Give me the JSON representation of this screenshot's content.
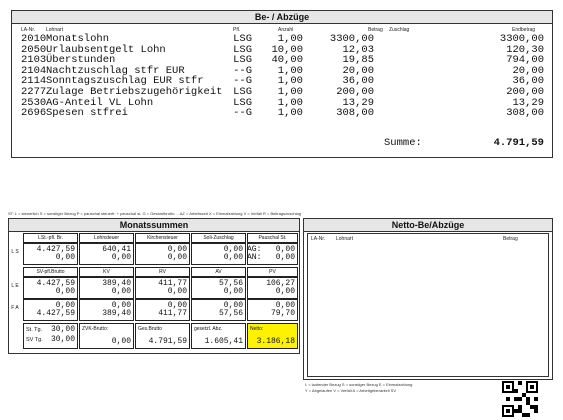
{
  "top": {
    "title": "Be- / Abzüge",
    "col_lanr": "LA-Nr.",
    "col_lohnart": "Lohnart",
    "col_pfl": "Pfl.",
    "col_anzahl": "Anzahl",
    "col_betrag": "Betrag",
    "col_zuschlag": "Zuschlag",
    "col_endbetrag": "Endbetrag",
    "rows": [
      {
        "nr": "2010",
        "name": "Monatslohn",
        "pfl": "LSG",
        "anz": "1,00",
        "betrag": "3300,00",
        "end": "3300,00"
      },
      {
        "nr": "2050",
        "name": "Urlaubsentgelt Lohn",
        "pfl": "LSG",
        "anz": "10,00",
        "betrag": "12,03",
        "end": "120,30"
      },
      {
        "nr": "2103",
        "name": "Überstunden",
        "pfl": "LSG",
        "anz": "40,00",
        "betrag": "19,85",
        "end": "794,00"
      },
      {
        "nr": "2104",
        "name": "Nachtzuschlag stfr EUR",
        "pfl": "--G",
        "anz": "1,00",
        "betrag": "20,00",
        "end": "20,00"
      },
      {
        "nr": "2114",
        "name": "Sonntagszuschlag EUR stfr",
        "pfl": "--G",
        "anz": "1,00",
        "betrag": "36,00",
        "end": "36,00"
      },
      {
        "nr": "2277",
        "name": "Zulage Betriebszugehörigkeit",
        "pfl": "LSG",
        "anz": "1,00",
        "betrag": "200,00",
        "end": "200,00"
      },
      {
        "nr": "2530",
        "name": "AG-Anteil VL Lohn",
        "pfl": "LSG",
        "anz": "1,00",
        "betrag": "13,29",
        "end": "13,29"
      },
      {
        "nr": "2696",
        "name": "Spesen stfrei",
        "pfl": "--G",
        "anz": "1,00",
        "betrag": "308,00",
        "end": "308,00"
      }
    ],
    "summe_label": "Summe:",
    "summe_value": "4.791,59"
  },
  "legend_line": "ST: L = steuerlich  S = sonstiger Bezug  P = pauschal steuerfr. + pauschal st.  G = Gesamtbrutto  ...  AZ = Arbeitszeit  X = Einmalzahlung  V = Verfall  R = Beitragszuschlag",
  "monat": {
    "title": "Monatssummen",
    "row1": {
      "labels": [
        "LSt.-pfl. Br.",
        "Lohnsteuer",
        "Kirchensteuer",
        "Soli-Zuschlag",
        "Pauschal St."
      ],
      "side": "L S",
      "line1": [
        "4.427,59",
        "640,41",
        "0,00",
        "0,00",
        "AG:   0,00"
      ],
      "line2": [
        "0,00",
        "0,00",
        "0,00",
        "0,00",
        "AN:   0,00"
      ]
    },
    "row2": {
      "labels": [
        "SV-pfl.Brutto",
        "KV",
        "RV",
        "AV",
        "PV"
      ],
      "side_le": "L E",
      "side_fa": "F A",
      "le1": [
        "4.427,59",
        "389,40",
        "411,77",
        "57,56",
        "106,27"
      ],
      "le2": [
        "0,00",
        "0,00",
        "0,00",
        "0,00",
        "0,00"
      ],
      "fa1": [
        "0,00",
        "0,00",
        "0,00",
        "0,00",
        "0,00"
      ],
      "fa2": [
        "4.427,59",
        "389,40",
        "411,77",
        "57,56",
        "79,70"
      ]
    },
    "row3": {
      "st_tg_label": "St. Tg.",
      "st_tg_value": "30,00",
      "sv_tg_label": "SV Tg.",
      "sv_tg_value": "30,00",
      "zvk_label": "ZVK-Brutto:",
      "zvk_value": "0,00",
      "ges_label": "Ges.Brutto",
      "ges_value": "4.791,59",
      "abz_label": "gesetzl. Abz.",
      "abz_value": "1.605,41",
      "netto_label": "Netto:",
      "netto_value": "3.186,18"
    }
  },
  "netto_box": {
    "title": "Netto-Be/Abzüge",
    "col_lanr": "LA-Nr.",
    "col_lohnart": "Lohnart",
    "col_betrag": "Betrag"
  },
  "footer_note": "L = laufender Bezug  S = sonstiger Bezug  E = Einmalzahlung",
  "footer_note2": "Y = Abgelaufen  V = Verfall  A = Arbeitgeberanteil SV",
  "colors": {
    "netto_highlight": "#fff200",
    "header_bg": "#e6e6e6"
  }
}
